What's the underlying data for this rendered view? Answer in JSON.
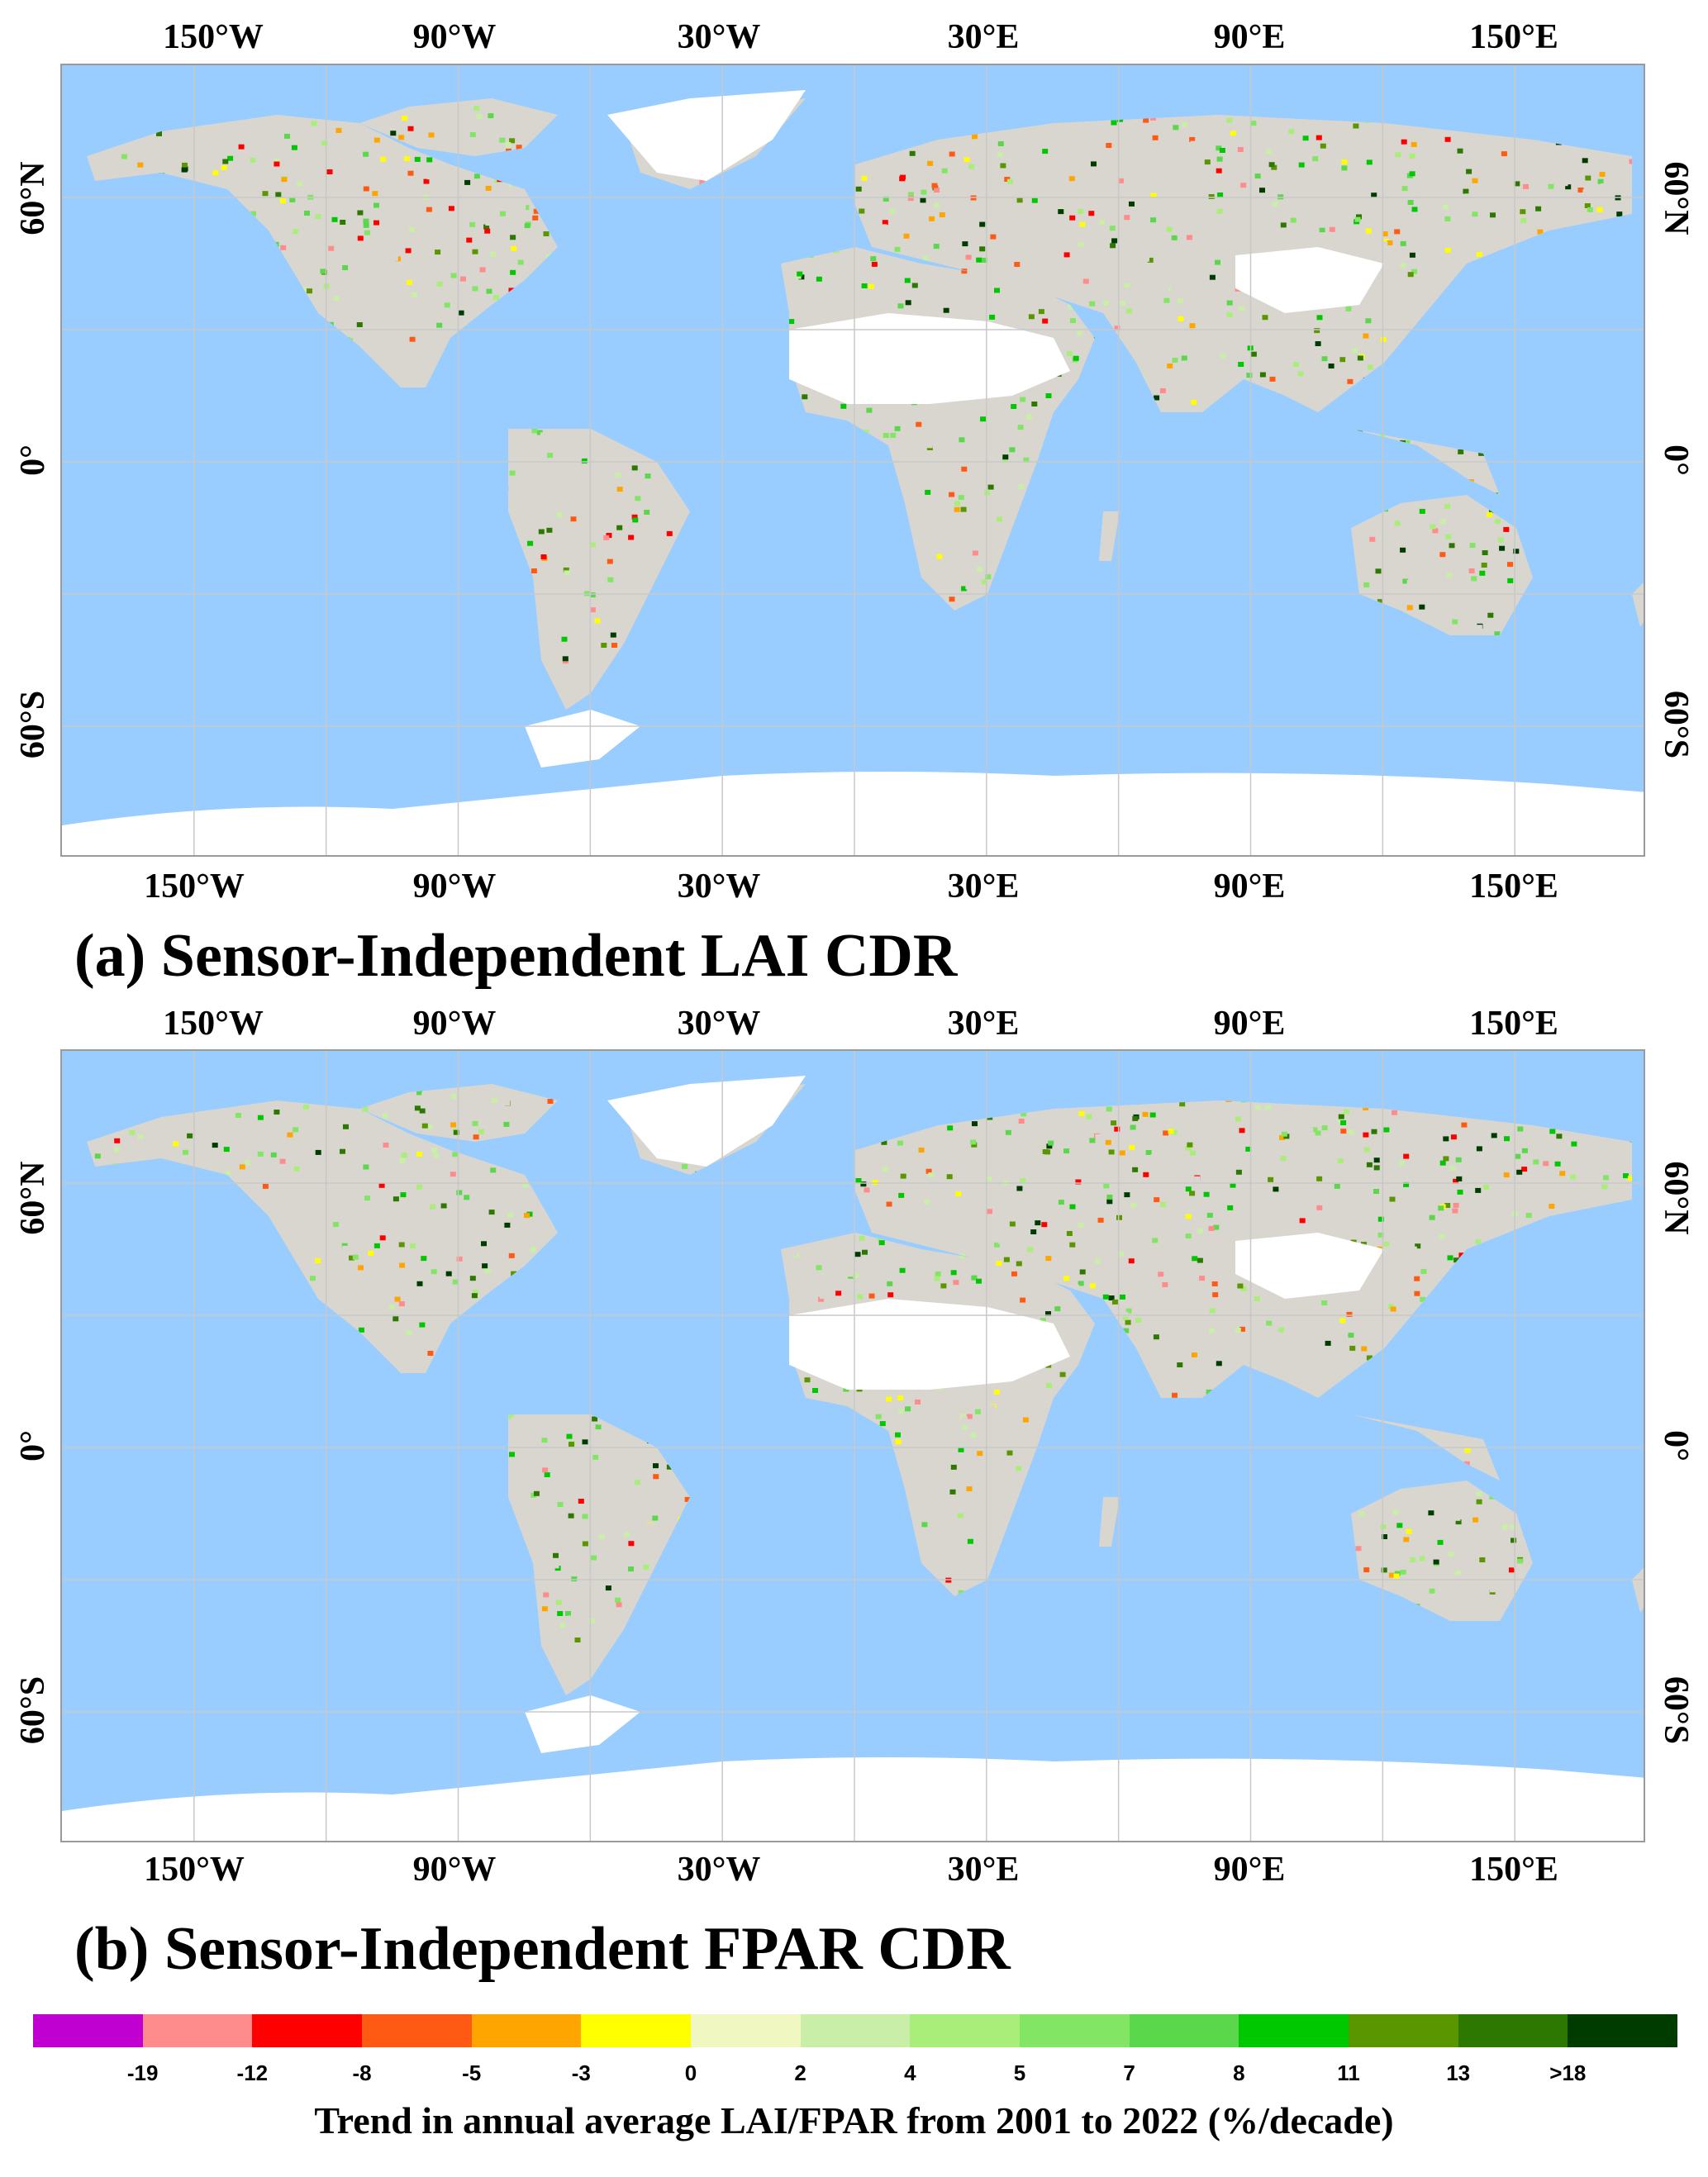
{
  "colors": {
    "ocean": "#99ccff",
    "ice": "#ffffff",
    "gridline": "#c8c8c8",
    "land_base": "#d9d6cf"
  },
  "panels": [
    {
      "id": "a",
      "title": "(a) Sensor-Independent LAI CDR",
      "lon_labels_top": [
        "150°W",
        "90°W",
        "30°W",
        "30°E",
        "90°E",
        "150°E"
      ],
      "lon_labels_bottom": [
        "150°W",
        "90°W",
        "30°W",
        "30°E",
        "90°E",
        "150°E"
      ],
      "lat_labels_left": [
        "60°N",
        "0°",
        "60°S"
      ],
      "lat_labels_right": [
        "60°N",
        "0°",
        "60°S"
      ]
    },
    {
      "id": "b",
      "title": "(b) Sensor-Independent FPAR CDR",
      "lon_labels_top": [
        "150°W",
        "90°W",
        "30°W",
        "30°E",
        "90°E",
        "150°E"
      ],
      "lon_labels_bottom": [
        "150°W",
        "90°W",
        "30°W",
        "30°E",
        "90°E",
        "150°E"
      ],
      "lat_labels_left": [
        "60°N",
        "0°",
        "60°S"
      ],
      "lat_labels_right": [
        "60°N",
        "0°",
        "60°S"
      ]
    }
  ],
  "legend": {
    "title": "Trend in annual average LAI/FPAR from 2001 to 2022  (%/decade)",
    "colors": [
      "#c000d0",
      "#ff8c8c",
      "#ff0000",
      "#ff5a14",
      "#ffa500",
      "#ffff00",
      "#f0f7c0",
      "#c8eea8",
      "#a8ee78",
      "#82e664",
      "#5ad74a",
      "#00c800",
      "#5a9600",
      "#2d7800",
      "#003c00"
    ],
    "ticks": [
      "-19",
      "-12",
      "-8",
      "-5",
      "-3",
      "0",
      "2",
      "4",
      "5",
      "7",
      "8",
      "11",
      "13",
      ">18"
    ]
  }
}
